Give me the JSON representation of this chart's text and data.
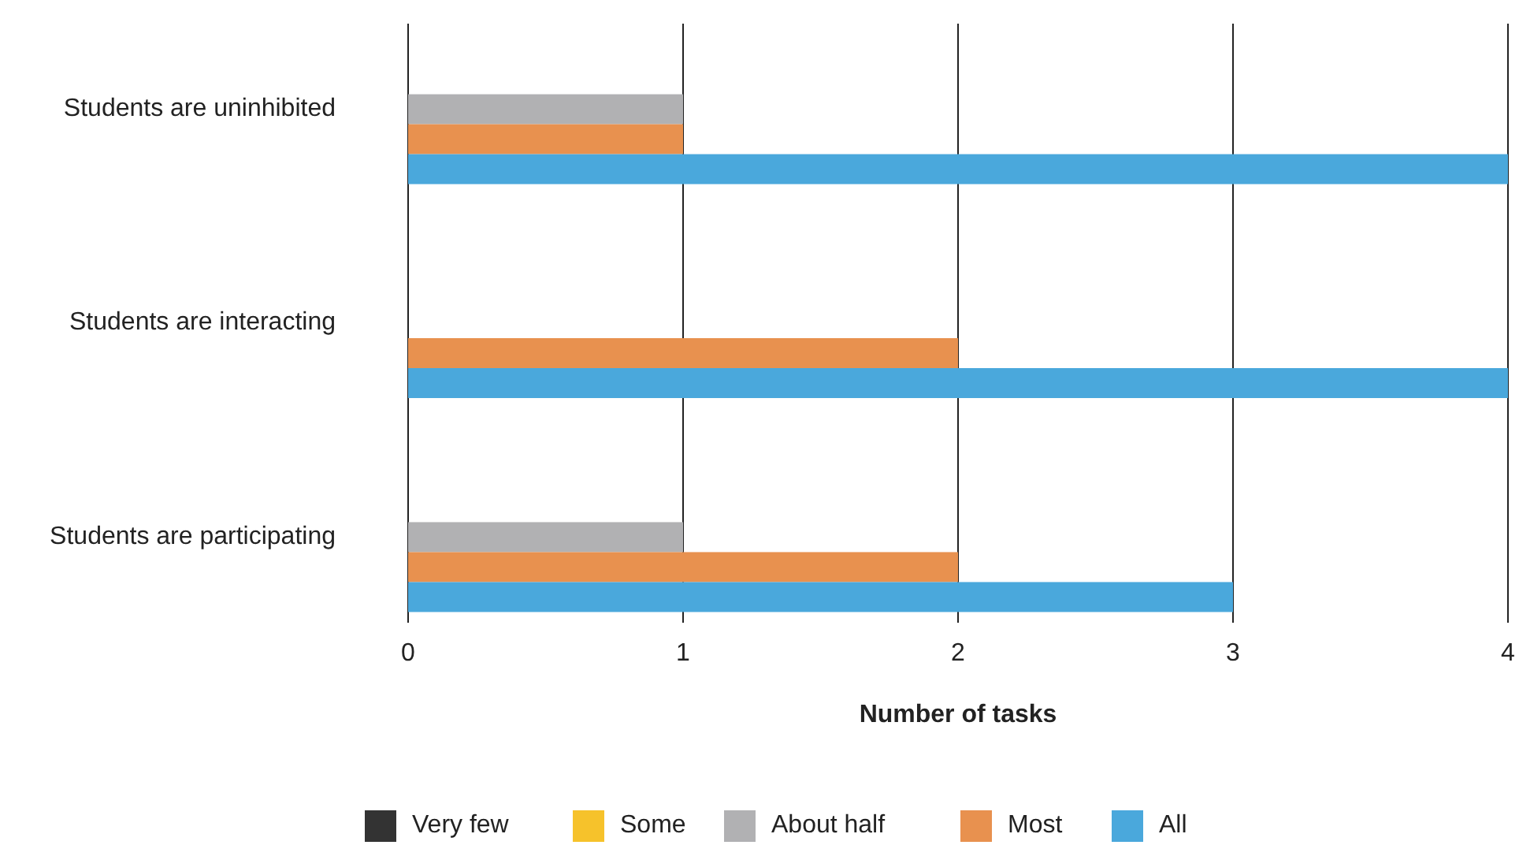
{
  "chart_data": {
    "type": "bar",
    "orientation": "horizontal",
    "xlabel": "Number of tasks",
    "categories": [
      "Students are uninhibited",
      "Students are interacting",
      "Students are participating"
    ],
    "series": [
      {
        "name": "Very few",
        "color": "#333333",
        "values": [
          0,
          0,
          0
        ]
      },
      {
        "name": "Some",
        "color": "#f6c22b",
        "values": [
          0,
          0,
          0
        ]
      },
      {
        "name": "About half",
        "color": "#b1b1b3",
        "values": [
          1,
          0,
          1
        ]
      },
      {
        "name": "Most",
        "color": "#e8914f",
        "values": [
          1,
          2,
          2
        ]
      },
      {
        "name": "All",
        "color": "#4aa8dc",
        "values": [
          4,
          4,
          3
        ]
      }
    ],
    "xlim": [
      0,
      4
    ],
    "xticks": [
      0,
      1,
      2,
      3,
      4
    ],
    "grid": "x",
    "legend": "bottom"
  }
}
